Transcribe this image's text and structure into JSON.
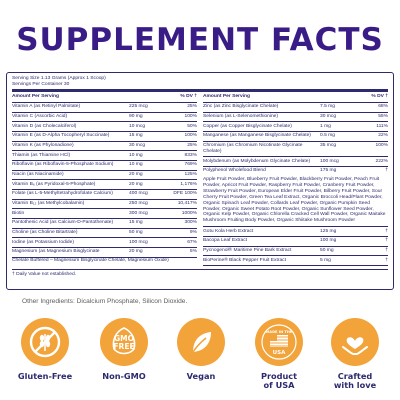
{
  "title": "SUPPLEMENT FACTS",
  "serving": {
    "size": "Serving Size 1.13 Grams (Approx 1 Scoop)",
    "per_container": "Servings Per Container 30"
  },
  "headers": {
    "amount": "Amount Per Serving",
    "dv": "% DV †"
  },
  "left_rows": [
    {
      "name": "Vitamin A (as Retinyl Palmitate)",
      "amount": "225 mcg",
      "dv": "25%"
    },
    {
      "name": "Vitamin C (Ascorbic Acid)",
      "amount": "90 mg",
      "dv": "100%"
    },
    {
      "name": "Vitamin D (as Cholecalciferol)",
      "amount": "10 mcg",
      "dv": "50%"
    },
    {
      "name": "Vitamin E (as D-Alpha Tocopheryl Succinate)",
      "amount": "15 mg",
      "dv": "100%"
    },
    {
      "name": "Vitamin K (as Phylonadione)",
      "amount": "30 mcg",
      "dv": "25%"
    },
    {
      "name": "Thiamin (as Thiamine HCl)",
      "amount": "10 mg",
      "dv": "833%"
    },
    {
      "name": "Riboflavin (as Riboflavin-5-Phosphate Sodium)",
      "amount": "10 mg",
      "dv": "769%"
    },
    {
      "name": "Niacin (as Niacinamide)",
      "amount": "20 mg",
      "dv": "125%"
    },
    {
      "name": "Vitamin B₆ (as Pyridoxal-5-Phosphate)",
      "amount": "20 mg",
      "dv": "1,176%"
    },
    {
      "name": "Folate (as L-5-Methyltetrahydrofolate Calcium)",
      "amount": "400 mcg",
      "dv": "DFE 100%"
    },
    {
      "name": "Vitamin B₁₂ (as Methylcobalamin)",
      "amount": "250 mcg",
      "dv": "10,417%"
    },
    {
      "name": "Biotin",
      "amount": "300 mcg",
      "dv": "1000%"
    },
    {
      "name": "Pantothenic Acid (as Calcium-D-Pantothenate)",
      "amount": "15 mg",
      "dv": "300%"
    },
    {
      "name": "Choline (as Choline Bitartrate)",
      "amount": "50 mg",
      "dv": "9%"
    },
    {
      "name": "Iodine (as Potassium Iodide)",
      "amount": "100 mcg",
      "dv": "67%"
    },
    {
      "name": "Magnesium (as Magnesium Bisglycinate",
      "amount": "20 mg",
      "dv": "5%"
    }
  ],
  "magnesium_note": "Chelate Buffered – Magnesium Bisglycinate Chelate, Magnesium Oxide)",
  "footnote": "† Daily Value not established.",
  "right_rows": [
    {
      "name": "Zinc (as Zinc Bisglycinate Chelate)",
      "amount": "7.5 mg",
      "dv": "68%"
    },
    {
      "name": "Selenium (as L-Selenomethionine)",
      "amount": "30 mcg",
      "dv": "55%"
    },
    {
      "name": "Copper (as Copper Bisglycinate Chelate)",
      "amount": "1 mg",
      "dv": "111%"
    },
    {
      "name": "Manganese (as Manganese Bisglycinate Chelate)",
      "amount": "0.5 mg",
      "dv": "22%"
    },
    {
      "name": "Chromium (as Chromium Nicotinate Glycinate Chelate)",
      "amount": "35 mcg",
      "dv": "100%"
    },
    {
      "name": "Molybdenum (as Molybdenum Glycinate Chelate)",
      "amount": "100 mcg",
      "dv": "222%"
    }
  ],
  "blend": {
    "name": "Polyphenol Wholefood Blend",
    "amount": "175 mg",
    "dv": "†",
    "description": "Apple Fruit Powder, Blueberry Fruit Powder, Blackberry Fruit Powder, Peach Fruit Powder, Apricot Fruit Powder, Raspberry Fruit Powder, Cranberry Fruit Powder, Strawberry Fruit Powder, European Elder Fruit Powder, Bilberry Fruit Powder, Sour Cherry Fruit Powder, Green Tea Leaf Extract, Organic Broccoli Head/Plant Powder, Organic Spinach Leaf Powder, Collards Leaf Powder, Organic Pumpkin Seed Powder, Organic Sweet Potato Root Powder, Organic Sunflower Seed Powder, Organic Kelp Powder, Organic Chlorella Cracked Cell Wall Powder, Organic Maitake Mushroom Fruiting Body Powder, Organic Shiitake Mushroom Powder"
  },
  "extracts": [
    {
      "name": "Gotu Kola Herb Extract",
      "amount": "125 mg",
      "dv": "†"
    },
    {
      "name": "Bacopa Leaf Extract",
      "amount": "100 mg",
      "dv": "†"
    },
    {
      "name": "Pycnogenol® Maritime Pine Bark Extract",
      "amount": "50 mg",
      "dv": "†"
    },
    {
      "name": "BioPerine® Black Pepper Fruit Extract",
      "amount": "5 mg",
      "dv": "†"
    }
  ],
  "other_ingredients": "Other Ingredients: Dicalcium Phosphate, Silicon Dioxide.",
  "badges": [
    {
      "icon": "gluten-free-icon",
      "label_line1": "Gluten-Free",
      "label_line2": ""
    },
    {
      "icon": "gmo-free-icon",
      "label_line1": "Non-GMO",
      "label_line2": "",
      "icon_text_top": "GMO",
      "icon_text_bottom": "FREE"
    },
    {
      "icon": "vegan-leaf-icon",
      "label_line1": "Vegan",
      "label_line2": ""
    },
    {
      "icon": "made-in-usa-icon",
      "label_line1": "Product",
      "label_line2": "of USA",
      "icon_text_top": "MADE IN THE",
      "icon_text_bottom": "USA"
    },
    {
      "icon": "heart-hands-icon",
      "label_line1": "Crafted",
      "label_line2": "with love"
    }
  ],
  "colors": {
    "title": "#3a1c86",
    "table": "#2d2a6e",
    "badge": "#f2a33a"
  }
}
